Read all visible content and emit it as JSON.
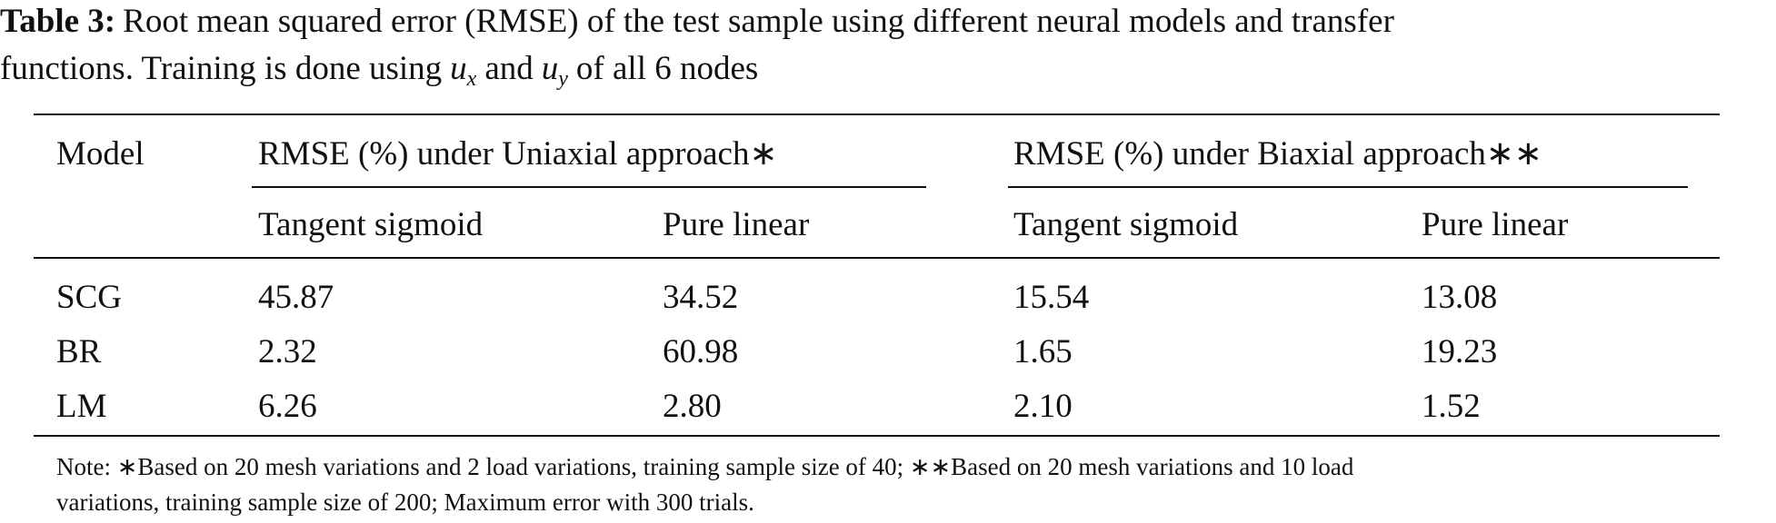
{
  "caption": {
    "label": "Table 3:",
    "line_1": "Root mean squared error (RMSE) of the test sample using different neural models and transfer",
    "line_2": "functions. Training is done using",
    "var_1": "u",
    "sub_1": "x",
    "joiner": "and",
    "var_2": "u",
    "sub_2": "y",
    "tail": "of all 6 nodes"
  },
  "table": {
    "header": {
      "model": "Model",
      "groups": [
        "RMSE (%) under Uniaxial approach∗",
        "RMSE (%) under Biaxial approach∗∗"
      ],
      "subheaders": [
        "Tangent sigmoid",
        "Pure linear",
        "Tangent sigmoid",
        "Pure linear"
      ]
    },
    "rows": [
      [
        "SCG",
        "45.87",
        "34.52",
        "15.54",
        "13.08"
      ],
      [
        "BR",
        "2.32",
        "60.98",
        "1.65",
        "19.23"
      ],
      [
        "LM",
        "6.26",
        "2.80",
        "2.10",
        "1.52"
      ]
    ]
  },
  "note": [
    "Note: ∗Based on 20 mesh variations and 2 load variations, training sample size of 40; ∗∗Based on 20 mesh variations and 10 load",
    "variations, training sample size of 200; Maximum error with 300 trials."
  ]
}
